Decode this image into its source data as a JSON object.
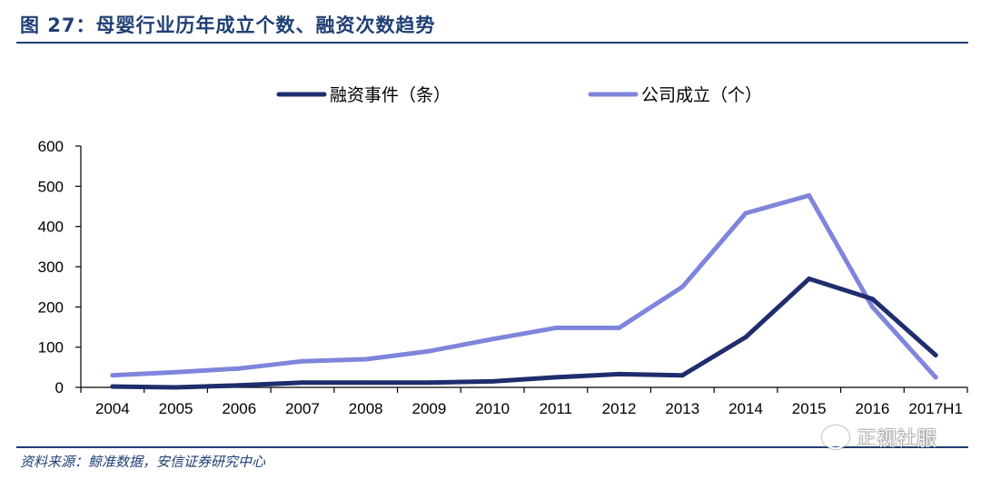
{
  "figure": {
    "title": "图 27：母婴行业历年成立个数、融资次数趋势",
    "source": "资料来源：鲸准数据，安信证券研究中心",
    "watermark": "正视社服",
    "watermark_icon": "wechat-icon"
  },
  "chart_data": {
    "type": "line",
    "title": "",
    "xlabel": "",
    "ylabel": "",
    "categories": [
      "2004",
      "2005",
      "2006",
      "2007",
      "2008",
      "2009",
      "2010",
      "2011",
      "2012",
      "2013",
      "2014",
      "2015",
      "2016",
      "2017H1"
    ],
    "ylim": [
      0,
      600
    ],
    "yticks": [
      0,
      100,
      200,
      300,
      400,
      500,
      600
    ],
    "grid": false,
    "legend": "top-center",
    "series": [
      {
        "name": "融资事件（条）",
        "color": "#1f2d6e",
        "values": [
          2,
          0,
          5,
          12,
          12,
          12,
          15,
          25,
          33,
          30,
          125,
          270,
          220,
          80
        ]
      },
      {
        "name": "公司成立（个）",
        "color": "#7f84dc",
        "values": [
          30,
          38,
          47,
          65,
          70,
          90,
          120,
          148,
          148,
          250,
          433,
          477,
          200,
          25
        ]
      }
    ]
  }
}
